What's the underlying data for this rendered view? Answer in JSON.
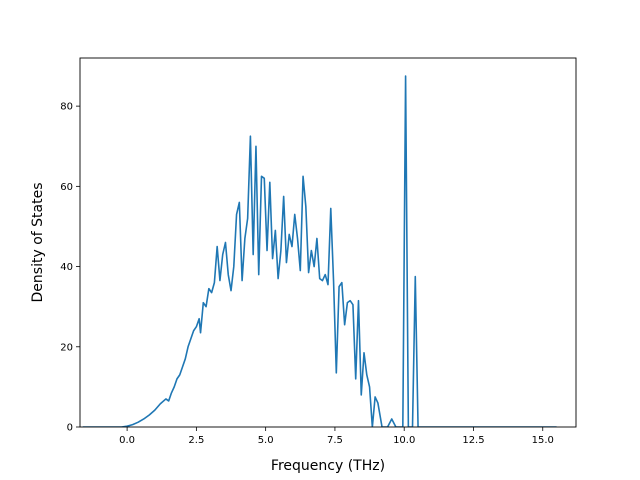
{
  "chart_data": {
    "type": "line",
    "title": "",
    "xlabel": "Frequency (THz)",
    "ylabel": "Density of States",
    "xlim": [
      -1.7,
      16.2
    ],
    "ylim": [
      0,
      92
    ],
    "grid": false,
    "legend": "none",
    "line_color": "#1f77b4",
    "x_ticks": [
      0.0,
      2.5,
      5.0,
      7.5,
      10.0,
      12.5,
      15.0
    ],
    "x_tick_labels": [
      "0.0",
      "2.5",
      "5.0",
      "7.5",
      "10.0",
      "12.5",
      "15.0"
    ],
    "y_ticks": [
      0,
      20,
      40,
      60,
      80
    ],
    "y_tick_labels": [
      "0",
      "20",
      "40",
      "60",
      "80"
    ],
    "series": [
      {
        "x": [
          -1.6,
          -0.5,
          -0.2,
          0.0,
          0.2,
          0.4,
          0.6,
          0.8,
          1.0,
          1.2,
          1.4,
          1.5,
          1.6,
          1.7,
          1.8,
          1.9,
          2.0,
          2.1,
          2.2,
          2.3,
          2.4,
          2.5,
          2.6,
          2.65,
          2.75,
          2.85,
          2.95,
          3.05,
          3.15,
          3.25,
          3.35,
          3.45,
          3.55,
          3.65,
          3.75,
          3.85,
          3.95,
          4.05,
          4.15,
          4.25,
          4.35,
          4.45,
          4.55,
          4.65,
          4.75,
          4.85,
          4.95,
          5.05,
          5.15,
          5.25,
          5.35,
          5.45,
          5.55,
          5.65,
          5.75,
          5.85,
          5.95,
          6.05,
          6.15,
          6.25,
          6.35,
          6.45,
          6.55,
          6.65,
          6.75,
          6.85,
          6.95,
          7.05,
          7.15,
          7.25,
          7.35,
          7.45,
          7.55,
          7.65,
          7.75,
          7.85,
          7.95,
          8.05,
          8.15,
          8.25,
          8.35,
          8.45,
          8.55,
          8.65,
          8.75,
          8.85,
          8.95,
          9.05,
          9.2,
          9.3,
          9.4,
          9.55,
          9.7,
          9.85,
          9.95,
          10.05,
          10.15,
          10.3,
          10.4,
          10.5,
          10.6,
          10.7,
          11.0,
          12.0,
          13.0,
          14.0,
          15.5
        ],
        "y": [
          0,
          0,
          0,
          0.2,
          0.6,
          1.2,
          2.0,
          3.0,
          4.2,
          5.8,
          7.0,
          6.5,
          8.5,
          10.0,
          12.0,
          13.0,
          15.0,
          17.0,
          20.0,
          22.0,
          24.0,
          25.0,
          27.0,
          23.5,
          31.0,
          30.0,
          34.5,
          33.5,
          36.0,
          45.0,
          36.5,
          43.0,
          46.0,
          38.0,
          34.0,
          40.0,
          53.0,
          56.0,
          36.5,
          47.0,
          52.0,
          72.5,
          43.0,
          70.0,
          38.0,
          62.5,
          62.0,
          44.0,
          61.0,
          42.0,
          49.0,
          37.0,
          44.0,
          57.5,
          41.0,
          48.0,
          45.0,
          53.0,
          47.0,
          39.0,
          62.5,
          55.0,
          38.5,
          44.0,
          40.0,
          47.0,
          37.0,
          36.5,
          38.0,
          35.5,
          54.5,
          36.5,
          13.5,
          35.0,
          36.0,
          25.5,
          31.0,
          31.5,
          30.5,
          12.0,
          31.5,
          8.0,
          18.5,
          13.0,
          10.0,
          0,
          7.5,
          6.0,
          0,
          0,
          0,
          2.0,
          0,
          0,
          0,
          87.5,
          0,
          0,
          37.5,
          0,
          0,
          0,
          0,
          0,
          0,
          0,
          0
        ]
      }
    ]
  }
}
